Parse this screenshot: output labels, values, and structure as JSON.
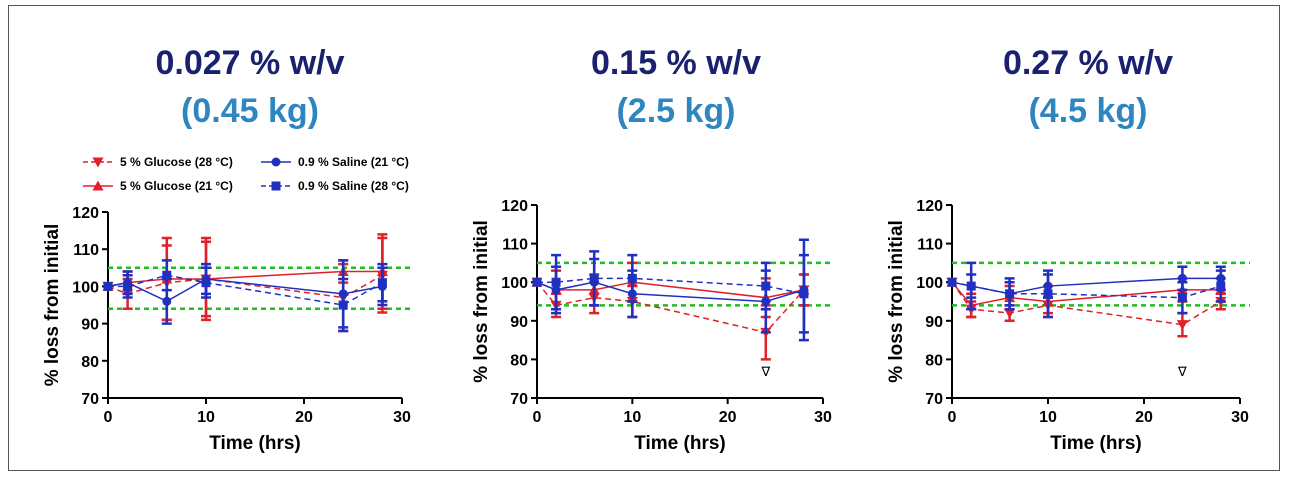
{
  "chart_data": [
    {
      "type": "line",
      "title": "0.027 % w/v",
      "subtitle": "(0.45 kg)",
      "x_label": "Time (hrs)",
      "y_label": "% loss from initial",
      "x": [
        0,
        2,
        6,
        10,
        24,
        28
      ],
      "xlim": [
        0,
        30
      ],
      "xticks": [
        0,
        10,
        20,
        30
      ],
      "ylim": [
        70,
        120
      ],
      "yticks": [
        70,
        80,
        90,
        100,
        110,
        120
      ],
      "hlines": [
        94,
        105
      ],
      "hline_color": "#22bb22",
      "legend": "top",
      "series": [
        {
          "name": "5 % Glucose (28 °C)",
          "color": "#e0202a",
          "marker": "triangle-down",
          "dashed": true,
          "values": [
            100,
            98,
            101,
            102,
            97,
            103
          ],
          "errors": [
            0,
            4,
            10,
            10,
            9,
            10
          ]
        },
        {
          "name": "5 % Glucose (21 °C)",
          "color": "#e0202a",
          "marker": "triangle-up",
          "dashed": false,
          "values": [
            100,
            101,
            102,
            102,
            104,
            104
          ],
          "errors": [
            0,
            3,
            11,
            11,
            3,
            10
          ]
        },
        {
          "name": "0.9 % Saline (21 °C)",
          "color": "#2030c0",
          "marker": "circle",
          "dashed": false,
          "values": [
            100,
            101,
            96,
            102,
            98,
            100
          ],
          "errors": [
            0,
            3,
            6,
            4,
            9,
            5
          ]
        },
        {
          "name": "0.9 % Saline (28 °C)",
          "color": "#2030c0",
          "marker": "square",
          "dashed": true,
          "values": [
            100,
            100,
            103,
            101,
            95,
            101
          ],
          "errors": [
            0,
            3,
            4,
            4,
            7,
            5
          ]
        }
      ]
    },
    {
      "type": "line",
      "title": "0.15 % w/v",
      "subtitle": "(2.5 kg)",
      "x_label": "Time (hrs)",
      "y_label": "% loss from initial",
      "x": [
        0,
        2,
        6,
        10,
        24,
        28
      ],
      "xlim": [
        0,
        30
      ],
      "xticks": [
        0,
        10,
        20,
        30
      ],
      "ylim": [
        70,
        120
      ],
      "yticks": [
        70,
        80,
        90,
        100,
        110,
        120
      ],
      "hlines": [
        94,
        105
      ],
      "hline_color": "#22bb22",
      "annotations": [
        {
          "text": "∇",
          "x": 24,
          "y": 77
        }
      ],
      "series": [
        {
          "color": "#e0202a",
          "marker": "triangle-down",
          "dashed": true,
          "values": [
            100,
            94,
            96,
            95,
            87,
            98
          ],
          "errors": [
            0,
            3,
            4,
            4,
            7,
            4
          ]
        },
        {
          "color": "#e0202a",
          "marker": "triangle-up",
          "dashed": false,
          "values": [
            100,
            98,
            98,
            100,
            96,
            98
          ],
          "errors": [
            0,
            5,
            4,
            5,
            5,
            4
          ]
        },
        {
          "color": "#2030c0",
          "marker": "circle",
          "dashed": false,
          "values": [
            100,
            98,
            100,
            97,
            95,
            98
          ],
          "errors": [
            0,
            6,
            6,
            6,
            8,
            13
          ]
        },
        {
          "color": "#2030c0",
          "marker": "square",
          "dashed": true,
          "values": [
            100,
            100,
            101,
            101,
            99,
            97
          ],
          "errors": [
            0,
            7,
            7,
            6,
            6,
            10
          ]
        }
      ]
    },
    {
      "type": "line",
      "title": "0.27 % w/v",
      "subtitle": "(4.5 kg)",
      "x_label": "Time (hrs)",
      "y_label": "% loss from initial",
      "x": [
        0,
        2,
        6,
        10,
        24,
        28
      ],
      "xlim": [
        0,
        30
      ],
      "xticks": [
        0,
        10,
        20,
        30
      ],
      "ylim": [
        70,
        120
      ],
      "yticks": [
        70,
        80,
        90,
        100,
        110,
        120
      ],
      "hlines": [
        94,
        105
      ],
      "hline_color": "#22bb22",
      "annotations": [
        {
          "text": "∇",
          "x": 24,
          "y": 77
        }
      ],
      "series": [
        {
          "color": "#e0202a",
          "marker": "triangle-down",
          "dashed": true,
          "values": [
            100,
            93,
            92,
            94,
            89,
            95
          ],
          "errors": [
            0,
            2,
            2,
            2,
            3,
            2
          ]
        },
        {
          "color": "#e0202a",
          "marker": "triangle-up",
          "dashed": false,
          "values": [
            100,
            94,
            96,
            95,
            98,
            98
          ],
          "errors": [
            0,
            3,
            3,
            4,
            3,
            3
          ]
        },
        {
          "color": "#2030c0",
          "marker": "circle",
          "dashed": false,
          "values": [
            100,
            99,
            97,
            99,
            101,
            101
          ],
          "errors": [
            0,
            6,
            4,
            3,
            3,
            3
          ]
        },
        {
          "color": "#2030c0",
          "marker": "square",
          "dashed": true,
          "values": [
            100,
            99,
            97,
            97,
            96,
            99
          ],
          "errors": [
            0,
            3,
            3,
            6,
            4,
            4
          ]
        }
      ]
    }
  ]
}
